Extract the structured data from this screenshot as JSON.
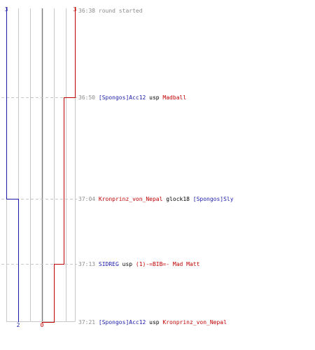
{
  "header": {
    "blue_count_top": "3",
    "red_count_top": "3"
  },
  "footer": {
    "blue_count_bottom": "2",
    "red_count_bottom": "0"
  },
  "colors": {
    "team_blue": "#1a1aa8",
    "team_red": "#c00000",
    "time": "#8c8c8c",
    "plain": "#000000",
    "grid": "#c8c8c8",
    "zero_line": "#7a7a7a",
    "dash": "#c8c8c8"
  },
  "events": [
    {
      "time": "36:38",
      "parts": [
        {
          "text": "round started",
          "color": "time"
        }
      ]
    },
    {
      "time": "36:50",
      "parts": [
        {
          "text": "[Spongos]Acc12",
          "color": "team_blue"
        },
        {
          "text": "usp",
          "color": "plain"
        },
        {
          "text": "Madball",
          "color": "team_red"
        }
      ]
    },
    {
      "time": "37:04",
      "parts": [
        {
          "text": "Kronprinz_von_Nepal",
          "color": "team_red"
        },
        {
          "text": "glock18",
          "color": "plain"
        },
        {
          "text": "[Spongos]Sly",
          "color": "team_blue"
        }
      ]
    },
    {
      "time": "37:13",
      "parts": [
        {
          "text": "SIDREG",
          "color": "team_blue"
        },
        {
          "text": "usp",
          "color": "plain"
        },
        {
          "text": "(1)-=BIB=- Mad Matt",
          "color": "team_red"
        }
      ]
    },
    {
      "time": "37:21",
      "parts": [
        {
          "text": "[Spongos]Acc12",
          "color": "team_blue"
        },
        {
          "text": "usp",
          "color": "plain"
        },
        {
          "text": "Kronprinz_von_Nepal",
          "color": "team_red"
        }
      ]
    }
  ]
}
